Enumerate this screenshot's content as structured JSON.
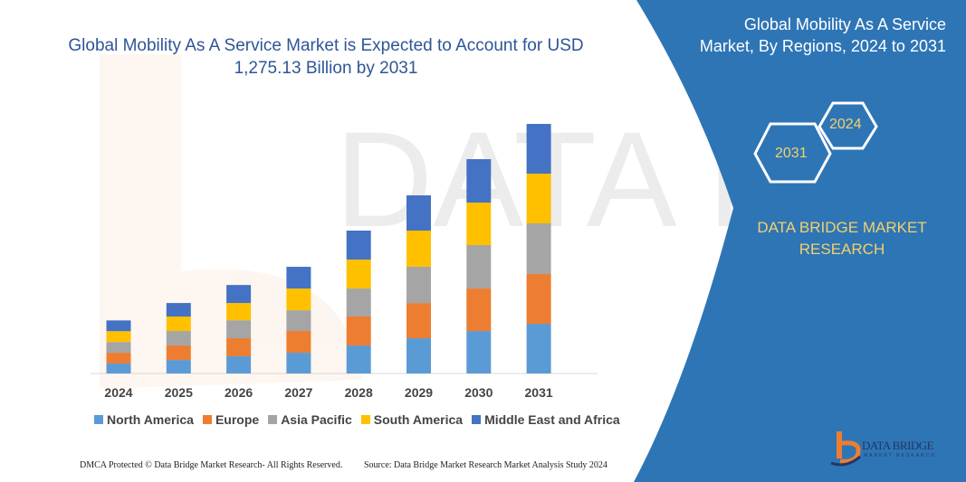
{
  "title": "Global Mobility As A Service Market is Expected to Account for USD 1,275.13 Billion by 2031",
  "panel": {
    "title": "Global Mobility As A Service Market, By Regions, 2024 to 2031",
    "hex_start": "2024",
    "hex_end": "2031",
    "brand": "DATA BRIDGE MARKET RESEARCH",
    "logo_text": "DATA BRIDGE",
    "logo_sub": "MARKET RESEARCH",
    "bg_color": "#2e75b6"
  },
  "footer": {
    "left": "DMCA Protected © Data Bridge Market Research- All Rights Reserved.",
    "right": "Source: Data Bridge Market Research Market Analysis Study 2024"
  },
  "chart_data": {
    "type": "bar",
    "stacked": true,
    "title": "Global Mobility As A Service Market is Expected to Account for USD 1,275.13 Billion by 2031",
    "xlabel": "",
    "ylabel": "",
    "ylim": [
      0,
      1275.13
    ],
    "grid": false,
    "legend_position": "bottom",
    "categories": [
      "2024",
      "2025",
      "2026",
      "2027",
      "2028",
      "2029",
      "2030",
      "2031"
    ],
    "series": [
      {
        "name": "North America",
        "color": "#5b9bd5",
        "values": [
          51,
          69,
          88,
          106,
          143,
          180,
          217,
          254
        ]
      },
      {
        "name": "Europe",
        "color": "#ed7d31",
        "values": [
          55,
          74,
          92,
          111,
          148,
          180,
          217,
          254
        ]
      },
      {
        "name": "Asia Pacific",
        "color": "#a5a5a5",
        "values": [
          55,
          74,
          92,
          106,
          143,
          185,
          222,
          259
        ]
      },
      {
        "name": "South America",
        "color": "#ffc000",
        "values": [
          55,
          74,
          88,
          111,
          148,
          185,
          217,
          254
        ]
      },
      {
        "name": "Middle East and Africa",
        "color": "#4472c4",
        "values": [
          55,
          69,
          92,
          111,
          148,
          180,
          222,
          254
        ]
      }
    ]
  }
}
